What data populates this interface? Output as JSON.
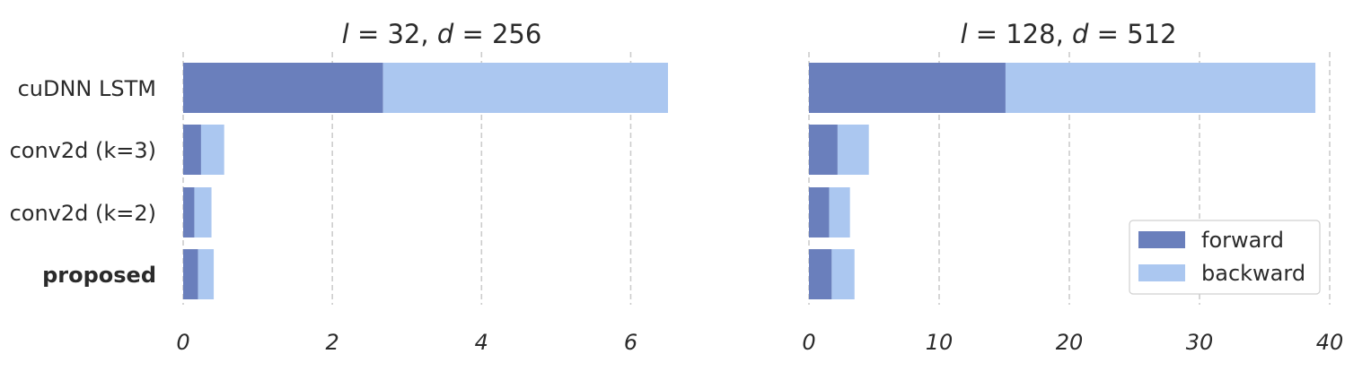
{
  "chart_data": [
    {
      "type": "bar",
      "orientation": "horizontal",
      "stacked": true,
      "title": "l = 32, d = 256",
      "title_parts": {
        "v1": "l",
        "eq1": " = 32, ",
        "v2": "d",
        "eq2": " = 256"
      },
      "categories": [
        "cuDNN LSTM",
        "conv2d (k=3)",
        "conv2d (k=2)",
        "proposed"
      ],
      "series": [
        {
          "name": "forward",
          "color": "#6a7fbc",
          "values": [
            2.68,
            0.24,
            0.15,
            0.2
          ]
        },
        {
          "name": "backward",
          "color": "#abc7f0",
          "values": [
            3.82,
            0.31,
            0.23,
            0.21
          ]
        }
      ],
      "xlim": [
        0,
        6.5
      ],
      "xticks": [
        0,
        2,
        4,
        6
      ],
      "grid": true
    },
    {
      "type": "bar",
      "orientation": "horizontal",
      "stacked": true,
      "title": "l = 128, d = 512",
      "title_parts": {
        "v1": "l",
        "eq1": " = 128, ",
        "v2": "d",
        "eq2": " = 512"
      },
      "categories": [
        "cuDNN LSTM",
        "conv2d (k=3)",
        "conv2d (k=2)",
        "proposed"
      ],
      "series": [
        {
          "name": "forward",
          "color": "#6a7fbc",
          "values": [
            15.1,
            2.2,
            1.55,
            1.75
          ]
        },
        {
          "name": "backward",
          "color": "#abc7f0",
          "values": [
            23.8,
            2.4,
            1.6,
            1.75
          ]
        }
      ],
      "xlim": [
        0,
        40
      ],
      "xticks": [
        0,
        10,
        20,
        30,
        40
      ],
      "grid": true,
      "legend": {
        "position": "bottom-right",
        "entries": [
          "forward",
          "backward"
        ]
      }
    }
  ]
}
